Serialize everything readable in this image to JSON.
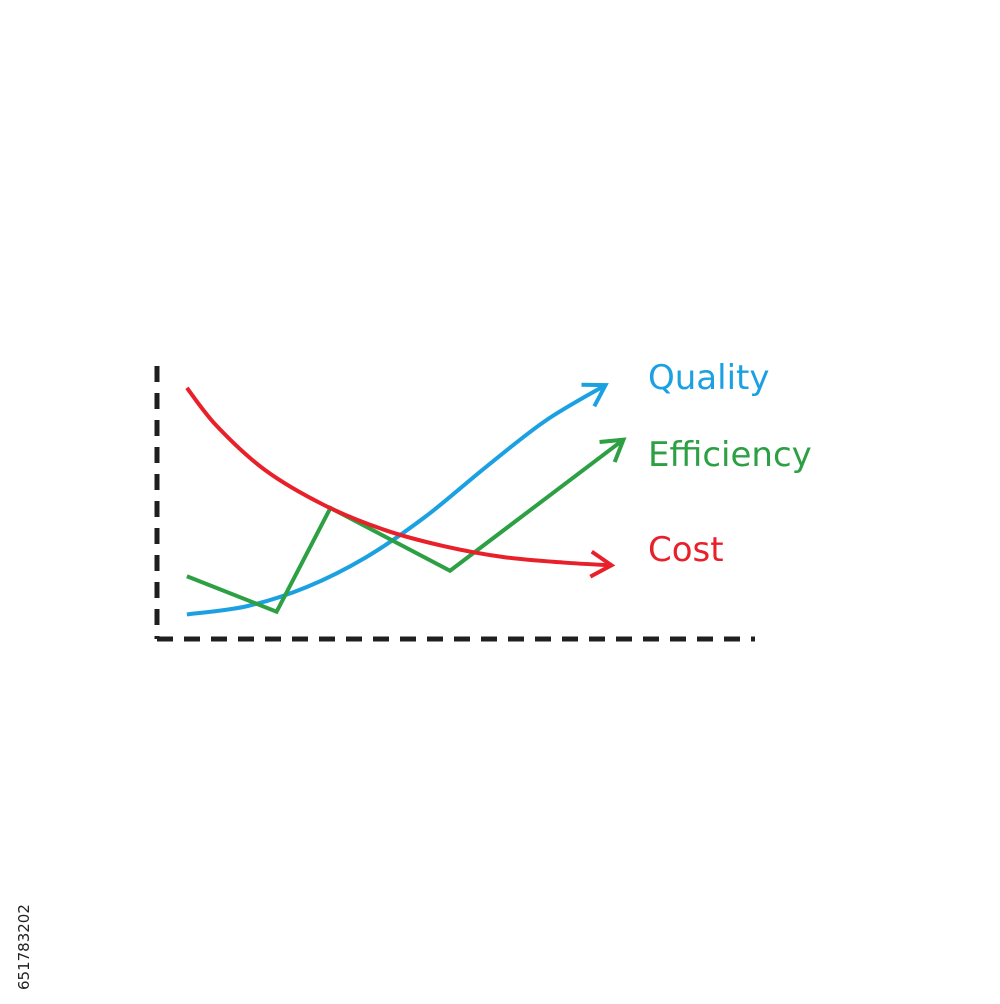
{
  "chart_data": {
    "type": "line",
    "title": "",
    "xlabel": "",
    "ylabel": "",
    "xlim": [
      0,
      10
    ],
    "ylim": [
      0,
      10
    ],
    "grid": false,
    "axes_style": "dashed",
    "series": [
      {
        "name": "Quality",
        "color": "#1ba1e2",
        "end_marker": "arrow",
        "x": [
          0.5,
          1.5,
          2.5,
          3.5,
          4.5,
          5.5,
          6.5,
          7.5
        ],
        "y": [
          0.9,
          1.2,
          1.9,
          3.0,
          4.5,
          6.3,
          8.0,
          9.3
        ]
      },
      {
        "name": "Efficiency",
        "color": "#2ca043",
        "end_marker": "arrow",
        "x": [
          0.5,
          2.0,
          2.9,
          4.9,
          7.8
        ],
        "y": [
          2.3,
          1.0,
          4.8,
          2.5,
          7.3
        ]
      },
      {
        "name": "Cost",
        "color": "#e8202a",
        "end_marker": "arrow",
        "x": [
          0.5,
          1.0,
          1.8,
          2.8,
          3.8,
          4.8,
          5.8,
          6.8,
          7.6
        ],
        "y": [
          9.2,
          7.8,
          6.2,
          4.9,
          4.0,
          3.4,
          3.0,
          2.8,
          2.7
        ]
      }
    ]
  },
  "labels": {
    "quality": "Quality",
    "efficiency": "Efficiency",
    "cost": "Cost"
  },
  "watermark": {
    "stock_id": "651783202"
  }
}
